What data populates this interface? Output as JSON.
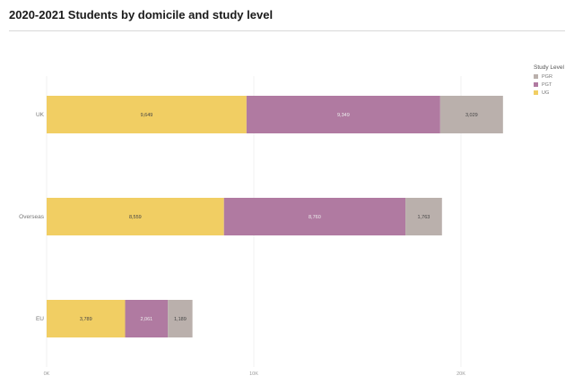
{
  "page": {
    "title": "2020-2021 Students by domicile and study level"
  },
  "legend": {
    "title": "Study Level",
    "items": [
      {
        "label": "PGR",
        "color": "#bab0ac"
      },
      {
        "label": "PGT",
        "color": "#b07aa1"
      },
      {
        "label": "UG",
        "color": "#f1ce63"
      }
    ]
  },
  "chart_data": {
    "type": "bar",
    "orientation": "horizontal",
    "stacked": true,
    "title": "2020-2021 Students by domicile and study level",
    "categories": [
      "UK",
      "Overseas",
      "EU"
    ],
    "series": [
      {
        "name": "UG",
        "color": "#f1ce63",
        "values": [
          9649,
          8559,
          3789
        ],
        "labels": [
          "9,649",
          "8,559",
          "3,789"
        ]
      },
      {
        "name": "PGT",
        "color": "#b07aa1",
        "values": [
          9349,
          8760,
          2061
        ],
        "labels": [
          "9,349",
          "8,760",
          "2,061"
        ]
      },
      {
        "name": "PGR",
        "color": "#bab0ac",
        "values": [
          3029,
          1763,
          1189
        ],
        "labels": [
          "3,029",
          "1,763",
          "1,189"
        ]
      }
    ],
    "x_ticks": [
      {
        "value": 0,
        "label": "0K"
      },
      {
        "value": 10000,
        "label": "10K"
      },
      {
        "value": 20000,
        "label": "20K"
      }
    ],
    "xlim": [
      0,
      25000
    ],
    "grid": true,
    "legend_position": "top-right"
  }
}
